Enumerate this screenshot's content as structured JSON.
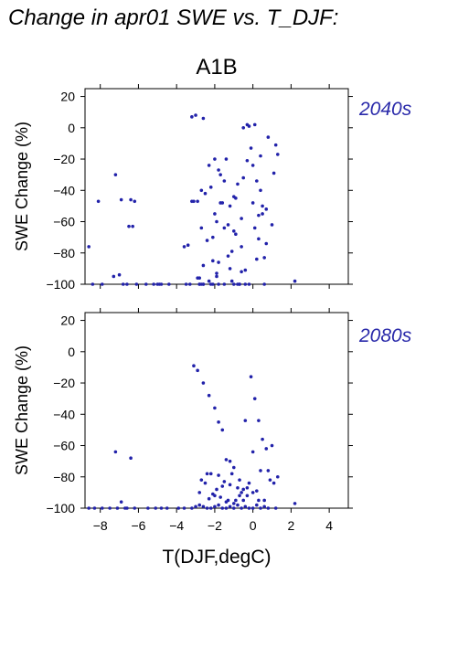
{
  "page": {
    "title": "Change in apr01 SWE vs. T_DJF:"
  },
  "colors": {
    "points": "#2222aa",
    "period_label": "#2a2aaa",
    "axes": "#000000"
  },
  "chart_data": [
    {
      "type": "scatter",
      "title": "A1B",
      "period_label": "2040s",
      "xlabel": "",
      "ylabel": "SWE Change (%)",
      "xlim": [
        -8.8,
        5.0
      ],
      "ylim": [
        -100,
        25
      ],
      "yticks": [
        20,
        0,
        -20,
        -40,
        -60,
        -80,
        -100
      ],
      "x": [
        -8.6,
        -8.1,
        -7.9,
        -8.4,
        -7.2,
        -7.0,
        -6.9,
        -7.3,
        -6.8,
        -6.5,
        -6.4,
        -6.3,
        -6.2,
        -6.6,
        -6.1,
        -5.6,
        -5.2,
        -5.0,
        -4.9,
        -4.8,
        -4.4,
        -3.6,
        -3.4,
        -3.5,
        -3.2,
        -3.1,
        -3.2,
        -3.0,
        -2.9,
        -2.7,
        -2.8,
        -3.3,
        -2.8,
        -2.6,
        -2.7,
        -2.5,
        -2.6,
        -2.3,
        -2.0,
        -2.2,
        -2.1,
        -1.9,
        -1.8,
        -2.1,
        -1.7,
        -1.9,
        -1.7,
        -1.5,
        -1.8,
        -1.3,
        -1.1,
        -1.4,
        -1.0,
        -1.2,
        -0.9,
        -0.8,
        -0.6,
        -0.7,
        -0.5,
        -0.4,
        -0.6,
        -0.3,
        -0.2,
        -0.1,
        0.0,
        0.1,
        0.2,
        0.3,
        0.4,
        0.5,
        0.6,
        0.7,
        0.8,
        1.2,
        1.3,
        1.1,
        2.2,
        -2.9,
        -2.6,
        -2.4,
        -2.0,
        -1.6,
        -1.3,
        -1.0,
        -0.6,
        -0.4,
        0.0,
        0.2,
        -2.8,
        -2.2,
        -1.9,
        -1.5,
        -1.1,
        -0.8,
        -0.3,
        0.3,
        0.6,
        -2.7,
        -2.3,
        -1.8,
        -1.2,
        -0.9,
        -0.5,
        0.1,
        0.4,
        0.7,
        -2.6,
        -2.1,
        -1.5,
        -1.0,
        -0.7,
        -0.2,
        0.5,
        1.0
      ],
      "y": [
        -76,
        -47,
        -100,
        -100,
        -30,
        -94,
        -46,
        -95,
        -100,
        -63,
        -46,
        -63,
        -47,
        -100,
        -100,
        -100,
        -100,
        -100,
        -100,
        -100,
        -100,
        -76,
        -75,
        -100,
        7,
        -47,
        -47,
        8,
        -47,
        -64,
        -100,
        -100,
        -96,
        6,
        -40,
        -42,
        -100,
        -24,
        -20,
        -38,
        -70,
        -60,
        -27,
        -85,
        -48,
        -95,
        -30,
        -34,
        -100,
        -82,
        -98,
        -20,
        -44,
        -50,
        -68,
        -100,
        -92,
        -100,
        0,
        -100,
        -58,
        2,
        1,
        -13,
        -24,
        2,
        -34,
        -56,
        -40,
        -50,
        -100,
        -52,
        -6,
        -11,
        -17,
        -29,
        -98,
        -96,
        -88,
        -72,
        -55,
        -48,
        -62,
        -66,
        -76,
        -91,
        -48,
        -84,
        -100,
        -100,
        -93,
        -64,
        -79,
        -36,
        -21,
        -71,
        -83,
        -100,
        -98,
        -86,
        -90,
        -45,
        -32,
        -64,
        -18,
        -74,
        -100,
        -100,
        -100,
        -100,
        -100,
        -100,
        -55,
        -62
      ]
    },
    {
      "type": "scatter",
      "title": "",
      "period_label": "2080s",
      "xlabel": "T(DJF,degC)",
      "ylabel": "SWE Change (%)",
      "xlim": [
        -8.8,
        5.0
      ],
      "ylim": [
        -100,
        25
      ],
      "xticks": [
        -8,
        -6,
        -4,
        -2,
        0,
        2,
        4
      ],
      "yticks": [
        20,
        0,
        -20,
        -40,
        -60,
        -80,
        -100
      ],
      "x": [
        -8.6,
        -8.3,
        -7.9,
        -7.5,
        -7.2,
        -6.9,
        -6.6,
        -6.4,
        -6.2,
        -7.1,
        -6.7,
        -5.5,
        -5.1,
        -4.8,
        -4.5,
        -3.9,
        -3.6,
        -3.2,
        -3.0,
        -2.8,
        -2.6,
        -2.4,
        -2.2,
        -2.0,
        -1.8,
        -1.6,
        -1.4,
        -1.2,
        -1.0,
        -0.8,
        -0.6,
        -0.4,
        -0.2,
        0.0,
        0.2,
        0.4,
        0.6,
        0.8,
        1.2,
        2.2,
        -3.1,
        -2.9,
        -2.6,
        -2.3,
        -2.0,
        -1.8,
        -1.6,
        -1.4,
        -1.2,
        -1.0,
        -0.7,
        -0.5,
        -0.3,
        -0.1,
        0.1,
        0.3,
        0.5,
        0.7,
        1.0,
        1.3,
        -2.8,
        -2.5,
        -2.2,
        -1.9,
        -1.7,
        -1.5,
        -1.3,
        -1.1,
        -0.9,
        -0.6,
        -0.4,
        -0.2,
        0.0,
        0.4,
        0.8,
        -2.7,
        -2.3,
        -2.1,
        -1.6,
        -1.0,
        -0.7,
        -0.3,
        0.2,
        0.6,
        -2.4,
        -1.8,
        -1.2,
        -0.5,
        0.0,
        0.9,
        -2.0,
        -1.4,
        -0.8,
        0.3,
        1.1
      ],
      "y": [
        -100,
        -100,
        -100,
        -100,
        -64,
        -96,
        -100,
        -68,
        -100,
        -100,
        -100,
        -100,
        -100,
        -100,
        -100,
        -100,
        -100,
        -100,
        -99,
        -98,
        -99,
        -100,
        -100,
        -99,
        -98,
        -100,
        -100,
        -99,
        -100,
        -98,
        -100,
        -99,
        -100,
        -100,
        -98,
        -100,
        -99,
        -100,
        -100,
        -97,
        -9,
        -12,
        -20,
        -28,
        -36,
        -45,
        -50,
        -69,
        -70,
        -74,
        -82,
        -88,
        -92,
        -16,
        -30,
        -44,
        -56,
        -62,
        -60,
        -80,
        -90,
        -84,
        -78,
        -88,
        -93,
        -83,
        -95,
        -78,
        -95,
        -90,
        -44,
        -84,
        -90,
        -76,
        -76,
        -82,
        -94,
        -91,
        -86,
        -97,
        -92,
        -87,
        -89,
        -95,
        -78,
        -79,
        -85,
        -95,
        -64,
        -82,
        -92,
        -96,
        -87,
        -95,
        -84
      ]
    }
  ]
}
